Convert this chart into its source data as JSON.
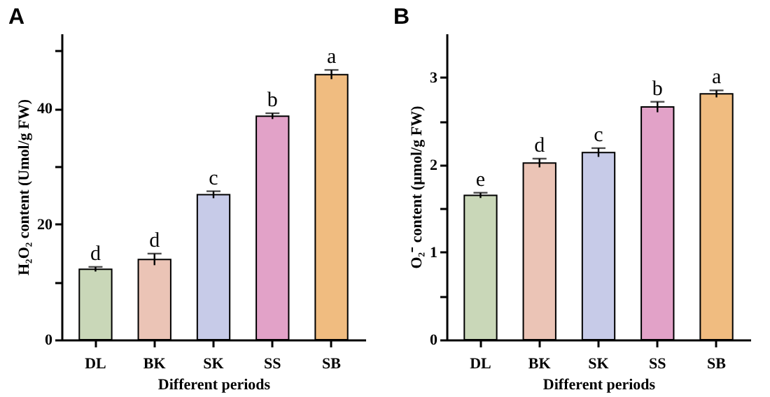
{
  "chart_data": [
    {
      "type": "bar",
      "title": "A",
      "xlabel": "Different periods",
      "ylabel": "H₂O₂ content (Umol/g FW)",
      "categories": [
        "DL",
        "BK",
        "SK",
        "SS",
        "SB"
      ],
      "values": [
        12.2,
        13.9,
        25.1,
        38.7,
        45.9
      ],
      "errors": [
        0.4,
        1.0,
        0.6,
        0.5,
        0.8
      ],
      "colors": [
        "#c9d7b8",
        "#ebc4b6",
        "#c7cbe8",
        "#e2a2c8",
        "#f0bc80"
      ],
      "ylim": [
        0,
        53
      ],
      "yticks": [
        0,
        {
          "value": 10,
          "label": null
        },
        20,
        {
          "value": 30,
          "label": null
        },
        40,
        {
          "value": 50,
          "label": null
        }
      ],
      "annotations": [
        {
          "text": "d",
          "x": "DL",
          "y": 12.6
        },
        {
          "text": "d",
          "x": "BK",
          "y": 14.9
        },
        {
          "text": "c",
          "x": "SK",
          "y": 25.7
        },
        {
          "text": "b",
          "x": "SS",
          "y": 39.2
        },
        {
          "text": "a",
          "x": "SB",
          "y": 46.7
        }
      ]
    },
    {
      "type": "bar",
      "title": "B",
      "xlabel": "Different periods",
      "ylabel": "O₂⁻ content (μmol/g FW)",
      "categories": [
        "DL",
        "BK",
        "SK",
        "SS",
        "SB"
      ],
      "values": [
        1.65,
        2.02,
        2.14,
        2.66,
        2.81
      ],
      "errors": [
        0.03,
        0.05,
        0.05,
        0.06,
        0.04
      ],
      "colors": [
        "#c9d7b8",
        "#ebc4b6",
        "#c7cbe8",
        "#e2a2c8",
        "#f0bc80"
      ],
      "ylim": [
        0,
        3.5
      ],
      "yticks": [
        0,
        {
          "value": 0.5,
          "label": null
        },
        1,
        {
          "value": 1.5,
          "label": null
        },
        2,
        {
          "value": 2.5,
          "label": null
        },
        3
      ],
      "annotations": [
        {
          "text": "e",
          "x": "DL",
          "y": 1.68
        },
        {
          "text": "d",
          "x": "BK",
          "y": 2.07
        },
        {
          "text": "c",
          "x": "SK",
          "y": 2.19
        },
        {
          "text": "b",
          "x": "SS",
          "y": 2.72
        },
        {
          "text": "a",
          "x": "SB",
          "y": 2.85
        }
      ]
    }
  ]
}
